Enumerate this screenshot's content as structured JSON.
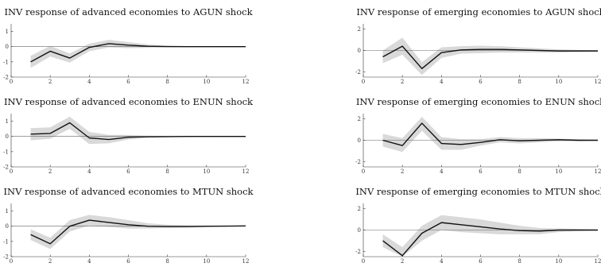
{
  "colors": {
    "line": "#111111",
    "band": "#d9d9d9",
    "zero": "#666666",
    "axis": "#333333"
  },
  "chart_data": [
    {
      "type": "area",
      "title": "INV response of advanced economies to AGUN shock",
      "x": [
        1,
        2,
        3,
        4,
        5,
        6,
        7,
        8,
        9,
        10,
        11,
        12
      ],
      "xlim": [
        0,
        12
      ],
      "ylim": [
        -2,
        1.5
      ],
      "xticks": [
        "0",
        "2",
        "4",
        "6",
        "8",
        "10",
        "12"
      ],
      "yticks": [
        "-2",
        "-1",
        "0",
        "1"
      ],
      "series": [
        {
          "values": [
            -1.0,
            -0.3,
            -0.75,
            -0.05,
            0.2,
            0.1,
            0.03,
            0.01,
            0,
            0,
            0,
            0
          ]
        },
        {
          "values": [
            -0.6,
            0.05,
            -0.45,
            0.2,
            0.45,
            0.3,
            0.15,
            0.06,
            0.03,
            0.02,
            0.01,
            0
          ]
        },
        {
          "values": [
            -1.4,
            -0.65,
            -1.05,
            -0.3,
            -0.05,
            -0.1,
            -0.08,
            -0.05,
            -0.03,
            -0.02,
            -0.01,
            0
          ]
        }
      ]
    },
    {
      "type": "area",
      "title": "INV response of emerging economies to AGUN shock",
      "x": [
        1,
        2,
        3,
        4,
        5,
        6,
        7,
        8,
        9,
        10,
        11,
        12
      ],
      "xlim": [
        0,
        12
      ],
      "ylim": [
        -2.5,
        2.5
      ],
      "xticks": [
        "0",
        "2",
        "4",
        "6",
        "8",
        "10",
        "12"
      ],
      "yticks": [
        "-2",
        "0",
        "2"
      ],
      "series": [
        {
          "values": [
            -0.6,
            0.4,
            -1.7,
            -0.2,
            0.05,
            0.1,
            0.1,
            0.05,
            0,
            -0.05,
            -0.05,
            -0.05
          ]
        },
        {
          "values": [
            0.0,
            1.2,
            -1.1,
            0.3,
            0.4,
            0.45,
            0.4,
            0.3,
            0.2,
            0.1,
            0.05,
            0
          ]
        },
        {
          "values": [
            -1.2,
            -0.4,
            -2.3,
            -0.7,
            -0.3,
            -0.25,
            -0.2,
            -0.2,
            -0.2,
            -0.2,
            -0.15,
            -0.1
          ]
        }
      ]
    },
    {
      "type": "area",
      "title": "INV response of advanced economies to ENUN shock",
      "x": [
        1,
        2,
        3,
        4,
        5,
        6,
        7,
        8,
        9,
        10,
        11,
        12
      ],
      "xlim": [
        0,
        12
      ],
      "ylim": [
        -2,
        1.5
      ],
      "xticks": [
        "0",
        "2",
        "4",
        "6",
        "8",
        "10",
        "12"
      ],
      "yticks": [
        "-2",
        "-1",
        "0",
        "1"
      ],
      "series": [
        {
          "values": [
            0.15,
            0.2,
            0.9,
            -0.1,
            -0.2,
            -0.05,
            -0.02,
            -0.01,
            0,
            0,
            0,
            0
          ]
        },
        {
          "values": [
            0.55,
            0.6,
            1.3,
            0.3,
            0.1,
            0.1,
            0.05,
            0.03,
            0.02,
            0.01,
            0.01,
            0
          ]
        },
        {
          "values": [
            -0.25,
            -0.15,
            0.5,
            -0.5,
            -0.45,
            -0.2,
            -0.1,
            -0.05,
            -0.03,
            -0.02,
            -0.01,
            0
          ]
        }
      ]
    },
    {
      "type": "area",
      "title": "INV response of emerging economies to ENUN shock",
      "x": [
        1,
        2,
        3,
        4,
        5,
        6,
        7,
        8,
        9,
        10,
        11,
        12
      ],
      "xlim": [
        0,
        12
      ],
      "ylim": [
        -2.5,
        2.5
      ],
      "xticks": [
        "0",
        "2",
        "4",
        "6",
        "8",
        "10",
        "12"
      ],
      "yticks": [
        "-2",
        "0",
        "2"
      ],
      "series": [
        {
          "values": [
            0.0,
            -0.5,
            1.6,
            -0.3,
            -0.4,
            -0.2,
            0.05,
            -0.05,
            0,
            0.05,
            0,
            0
          ]
        },
        {
          "values": [
            0.6,
            0.2,
            2.2,
            0.3,
            0.1,
            0.1,
            0.3,
            0.2,
            0.2,
            0.15,
            0.1,
            0.05
          ]
        },
        {
          "values": [
            -0.6,
            -1.1,
            0.9,
            -0.9,
            -0.9,
            -0.5,
            -0.2,
            -0.3,
            -0.2,
            -0.1,
            -0.1,
            -0.05
          ]
        }
      ]
    },
    {
      "type": "area",
      "title": "INV response of advanced economies to MTUN shock",
      "x": [
        1,
        2,
        3,
        4,
        5,
        6,
        7,
        8,
        9,
        10,
        11,
        12
      ],
      "xlim": [
        0,
        12
      ],
      "ylim": [
        -2,
        1.5
      ],
      "xticks": [
        "0",
        "2",
        "4",
        "6",
        "8",
        "10",
        "12"
      ],
      "yticks": [
        "-2",
        "-1",
        "0",
        "1"
      ],
      "series": [
        {
          "values": [
            -0.55,
            -1.15,
            0.0,
            0.4,
            0.25,
            0.1,
            0.0,
            -0.02,
            -0.02,
            0,
            0.01,
            0.02
          ]
        },
        {
          "values": [
            -0.2,
            -0.75,
            0.4,
            0.75,
            0.6,
            0.4,
            0.2,
            0.1,
            0.06,
            0.04,
            0.03,
            0.03
          ]
        },
        {
          "values": [
            -0.9,
            -1.5,
            -0.35,
            0.05,
            -0.05,
            -0.15,
            -0.15,
            -0.12,
            -0.1,
            -0.06,
            -0.02,
            0.01
          ]
        }
      ]
    },
    {
      "type": "area",
      "title": "INV response of emerging economies to MTUN shock",
      "x": [
        1,
        2,
        3,
        4,
        5,
        6,
        7,
        8,
        9,
        10,
        11,
        12
      ],
      "xlim": [
        0,
        12
      ],
      "ylim": [
        -2.5,
        2.5
      ],
      "xticks": [
        "0",
        "2",
        "4",
        "6",
        "8",
        "10",
        "12"
      ],
      "yticks": [
        "-2",
        "0",
        "2"
      ],
      "series": [
        {
          "values": [
            -1.0,
            -2.4,
            -0.3,
            0.7,
            0.5,
            0.3,
            0.1,
            -0.05,
            -0.1,
            0,
            0,
            0
          ]
        },
        {
          "values": [
            -0.4,
            -1.6,
            0.4,
            1.4,
            1.2,
            1.0,
            0.7,
            0.4,
            0.2,
            0.15,
            0.1,
            0.05
          ]
        },
        {
          "values": [
            -1.6,
            -2.5,
            -1.0,
            0.0,
            -0.2,
            -0.3,
            -0.4,
            -0.4,
            -0.4,
            -0.2,
            -0.1,
            -0.05
          ]
        }
      ]
    }
  ]
}
